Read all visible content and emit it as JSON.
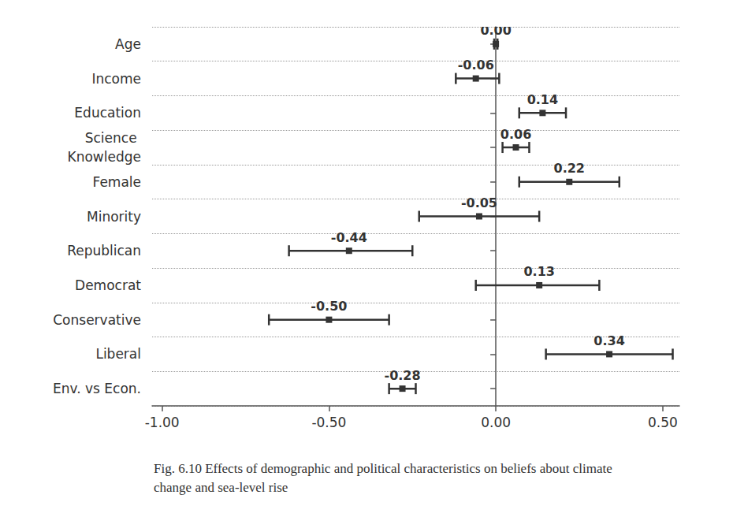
{
  "chart_data": {
    "type": "errorbar",
    "title": "Fig. 6.10 Effects of demographic and political characteristics on beliefs about climate change and sea-level rise",
    "orientation": "horizontal",
    "categories": [
      "Age",
      "Income",
      "Education",
      "Science Knowledge",
      "Female",
      "Minority",
      "Republican",
      "Democrat",
      "Conservative",
      "Liberal",
      "Env. vs Econ."
    ],
    "values": [
      0.0,
      -0.06,
      0.14,
      0.06,
      0.22,
      -0.05,
      -0.44,
      0.13,
      -0.5,
      0.34,
      -0.28
    ],
    "value_labels": [
      "0.00",
      "-0.06",
      "0.14",
      "0.06",
      "0.22",
      "-0.05",
      "-0.44",
      "0.13",
      "-0.50",
      "0.34",
      "-0.28"
    ],
    "lower": [
      -0.005,
      -0.12,
      0.07,
      0.02,
      0.07,
      -0.23,
      -0.62,
      -0.06,
      -0.68,
      0.15,
      -0.32
    ],
    "upper": [
      0.005,
      0.01,
      0.21,
      0.1,
      0.37,
      0.13,
      -0.25,
      0.31,
      -0.32,
      0.53,
      -0.24
    ],
    "xlim": [
      -1.03,
      0.55
    ],
    "xticks": [
      {
        "value": -1,
        "label": "-1.00"
      },
      {
        "value": -0.5,
        "label": "-0.50"
      },
      {
        "value": 0,
        "label": "0.00"
      },
      {
        "value": 0.5,
        "label": "0.50"
      }
    ],
    "grid": true,
    "data_labels": true,
    "marker": "square",
    "color": "#333333"
  }
}
